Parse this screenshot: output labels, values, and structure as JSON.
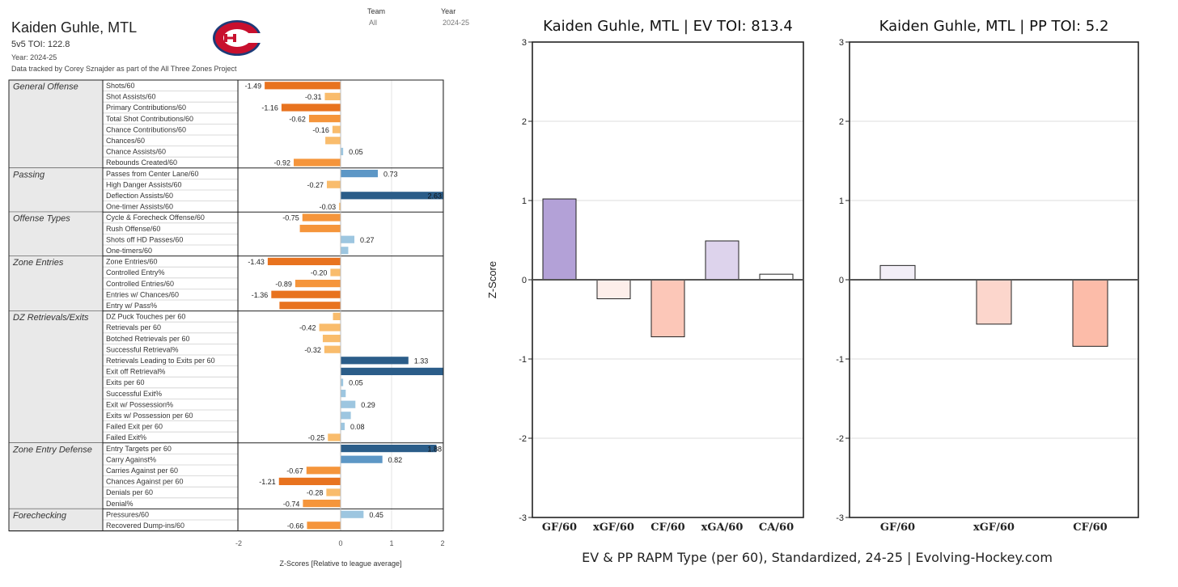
{
  "header": {
    "title": "Kaiden Guhle, MTL",
    "toi": "5v5 TOI: 122.8",
    "year_line": "Year: 2024-25",
    "credit": "Data tracked by Corey Sznajder as part of the All Three Zones Project",
    "team_label": "Team",
    "team_value": "All",
    "year_label": "Year",
    "year_value": "2024-25"
  },
  "colors": {
    "neg_strong": "#e8731f",
    "neg_mid": "#f5953b",
    "neg_light": "#f9bc6c",
    "pos_strong": "#2b5d89",
    "pos_mid": "#5d97c6",
    "pos_light": "#9dc6e0",
    "category_bg": "#e9e9e9"
  },
  "chart_data": [
    {
      "type": "bar",
      "orientation": "horizontal",
      "xlabel": "Z-Scores [Relative to league average]",
      "xticks": [
        "-2",
        "0",
        "1",
        "2"
      ],
      "xlim": [
        -2,
        2
      ],
      "groups": [
        {
          "name": "General Offense",
          "rows": [
            {
              "label": "Shots/60",
              "value": -1.49,
              "shown": "-1.49"
            },
            {
              "label": "Shot Assists/60",
              "value": -0.31,
              "shown": "-0.31"
            },
            {
              "label": "Primary Contributions/60",
              "value": -1.16,
              "shown": "-1.16"
            },
            {
              "label": "Total Shot Contributions/60",
              "value": -0.62,
              "shown": "-0.62"
            },
            {
              "label": "Chance Contributions/60",
              "value": -0.16,
              "shown": "-0.16"
            },
            {
              "label": "Chances/60",
              "value": -0.3,
              "shown": ""
            },
            {
              "label": "Chance Assists/60",
              "value": 0.05,
              "shown": "0.05"
            },
            {
              "label": "Rebounds Created/60",
              "value": -0.92,
              "shown": "-0.92"
            }
          ]
        },
        {
          "name": "Passing",
          "rows": [
            {
              "label": "Passes from Center Lane/60",
              "value": 0.73,
              "shown": "0.73"
            },
            {
              "label": "High Danger Assists/60",
              "value": -0.27,
              "shown": "-0.27"
            },
            {
              "label": "Deflection Assists/60",
              "value": 2.63,
              "shown": "2.63"
            },
            {
              "label": "One-timer Assists/60",
              "value": -0.03,
              "shown": "-0.03"
            }
          ]
        },
        {
          "name": "Offense Types",
          "rows": [
            {
              "label": "Cycle & Forecheck Offense/60",
              "value": -0.75,
              "shown": "-0.75"
            },
            {
              "label": "Rush Offense/60",
              "value": -0.8,
              "shown": ""
            },
            {
              "label": "Shots off HD Passes/60",
              "value": 0.27,
              "shown": "0.27"
            },
            {
              "label": "One-timers/60",
              "value": 0.15,
              "shown": ""
            }
          ]
        },
        {
          "name": "Zone Entries",
          "rows": [
            {
              "label": "Zone Entries/60",
              "value": -1.43,
              "shown": "-1.43"
            },
            {
              "label": "Controlled Entry%",
              "value": -0.2,
              "shown": "-0.20"
            },
            {
              "label": "Controlled Entries/60",
              "value": -0.89,
              "shown": "-0.89"
            },
            {
              "label": "Entries w/ Chances/60",
              "value": -1.36,
              "shown": "-1.36"
            },
            {
              "label": "Entry w/ Pass%",
              "value": -1.2,
              "shown": ""
            }
          ]
        },
        {
          "name": "DZ Retrievals/Exits",
          "rows": [
            {
              "label": "DZ Puck Touches per 60",
              "value": -0.15,
              "shown": ""
            },
            {
              "label": "Retrievals per 60",
              "value": -0.42,
              "shown": "-0.42"
            },
            {
              "label": "Botched Retrievals per 60",
              "value": -0.35,
              "shown": ""
            },
            {
              "label": "Successful Retrieval%",
              "value": -0.32,
              "shown": "-0.32"
            },
            {
              "label": "Retrievals Leading to Exits per 60",
              "value": 1.33,
              "shown": "1.33"
            },
            {
              "label": "Exit off Retrieval%",
              "value": 2.2,
              "shown": ""
            },
            {
              "label": "Exits per 60",
              "value": 0.05,
              "shown": "0.05"
            },
            {
              "label": "Successful Exit%",
              "value": 0.1,
              "shown": ""
            },
            {
              "label": "Exit w/ Possession%",
              "value": 0.29,
              "shown": "0.29"
            },
            {
              "label": "Exits w/ Possession per 60",
              "value": 0.2,
              "shown": ""
            },
            {
              "label": "Failed Exit per 60",
              "value": 0.08,
              "shown": "0.08"
            },
            {
              "label": "Failed Exit%",
              "value": -0.25,
              "shown": "-0.25"
            }
          ]
        },
        {
          "name": "Zone Entry Defense",
          "rows": [
            {
              "label": "Entry Targets per 60",
              "value": 1.88,
              "shown": "1.88"
            },
            {
              "label": "Carry Against%",
              "value": 0.82,
              "shown": "0.82"
            },
            {
              "label": "Carries Against per 60",
              "value": -0.67,
              "shown": "-0.67"
            },
            {
              "label": "Chances Against per 60",
              "value": -1.21,
              "shown": "-1.21"
            },
            {
              "label": "Denials per 60",
              "value": -0.28,
              "shown": "-0.28"
            },
            {
              "label": "Denial%",
              "value": -0.74,
              "shown": "-0.74"
            }
          ]
        },
        {
          "name": "Forechecking",
          "rows": [
            {
              "label": "Pressures/60",
              "value": 0.45,
              "shown": "0.45"
            },
            {
              "label": "Recovered Dump-ins/60",
              "value": -0.66,
              "shown": "-0.66"
            }
          ]
        }
      ]
    },
    {
      "type": "bar",
      "title": "Kaiden Guhle, MTL  |  EV TOI: 813.4",
      "ylabel": "Z-Score",
      "ylim": [
        -3,
        3
      ],
      "yticks": [
        "3",
        "2",
        "1",
        "0",
        "-1",
        "-2",
        "-3"
      ],
      "categories": [
        "GF/60",
        "xGF/60",
        "CF/60",
        "xGA/60",
        "CA/60"
      ],
      "values": [
        1.02,
        -0.24,
        -0.72,
        0.49,
        0.07
      ],
      "colors": [
        "#b3a1d7",
        "#fdeeea",
        "#fcc7b8",
        "#ddd3ec",
        "#ffffff"
      ],
      "grid": true
    },
    {
      "type": "bar",
      "title": "Kaiden Guhle, MTL  |  PP TOI: 5.2",
      "ylim": [
        -3,
        3
      ],
      "yticks": [
        "3",
        "2",
        "1",
        "0",
        "-1",
        "-2",
        "-3"
      ],
      "categories": [
        "GF/60",
        "xGF/60",
        "CF/60"
      ],
      "values": [
        0.18,
        -0.56,
        -0.84
      ],
      "colors": [
        "#f2eef7",
        "#fcd6cc",
        "#fcbca9"
      ],
      "grid": true
    }
  ],
  "footer": "EV & PP RAPM Type (per 60), Standardized, 24-25     |     Evolving-Hockey.com"
}
